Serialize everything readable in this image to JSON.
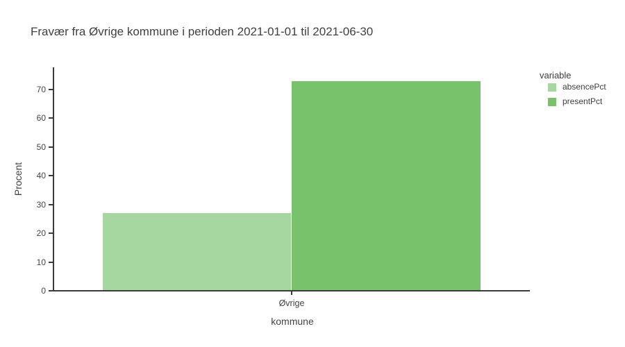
{
  "title": "Fravær fra Øvrige kommune i perioden 2021-01-01 til 2021-06-30",
  "legend": {
    "title": "variable",
    "items": [
      {
        "label": "absencePct",
        "color": "#a6d7a0"
      },
      {
        "label": "presentPct",
        "color": "#79c26c"
      }
    ]
  },
  "axes": {
    "x_title": "kommune",
    "y_title": "Procent",
    "x_category": "Øvrige"
  },
  "colors": {
    "absence": "#a6d7a0",
    "present": "#79c26c",
    "axis_line": "#3a3a3a",
    "tick_text": "#444444",
    "title_text": "#404040"
  },
  "chart_data": {
    "type": "bar",
    "barmode": "group",
    "title": "Fravær fra Øvrige kommune i perioden 2021-01-01 til 2021-06-30",
    "xlabel": "kommune",
    "ylabel": "Procent",
    "categories": [
      "Øvrige"
    ],
    "series": [
      {
        "name": "absencePct",
        "values": [
          27.1
        ],
        "color": "#a6d7a0"
      },
      {
        "name": "presentPct",
        "values": [
          72.9
        ],
        "color": "#79c26c"
      }
    ],
    "ylim": [
      0,
      77.7
    ],
    "yticks": [
      0,
      10,
      20,
      30,
      40,
      50,
      60,
      70
    ],
    "grid": false,
    "legend_title": "variable",
    "legend_position": "right"
  }
}
